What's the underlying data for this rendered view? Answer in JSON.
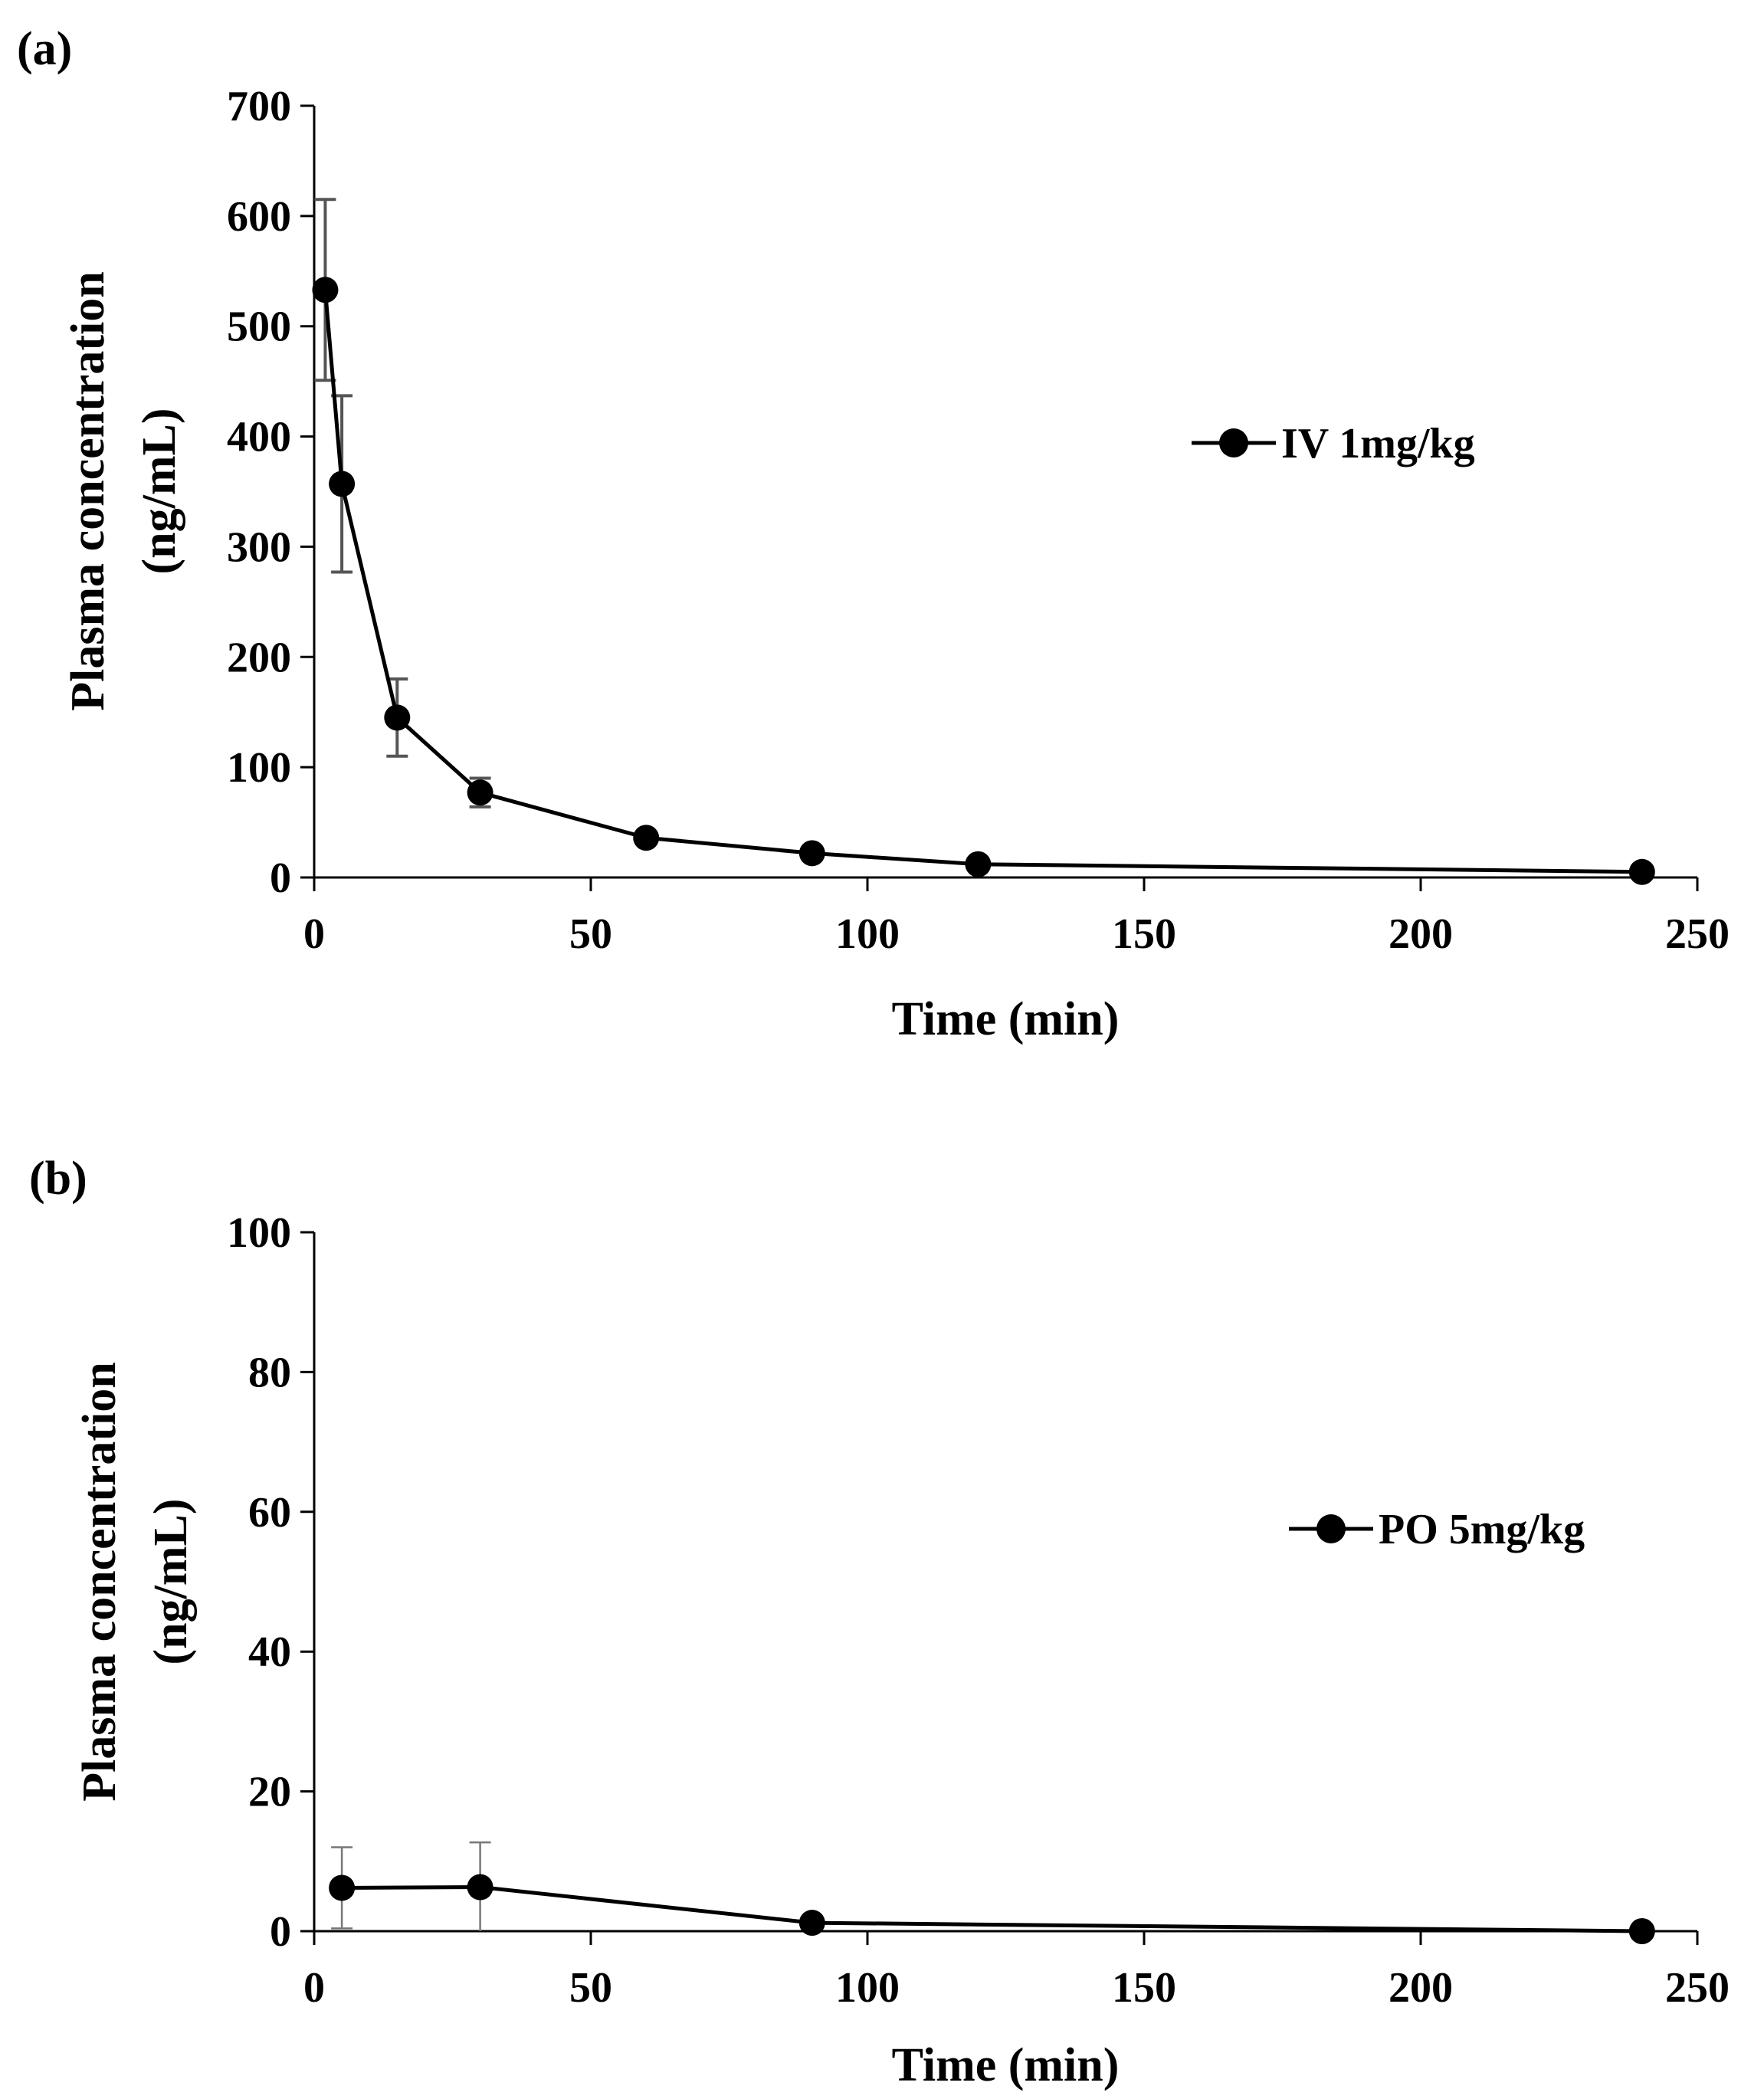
{
  "chart_data": [
    {
      "type": "line",
      "panel_label": "(a)",
      "title": "",
      "xlabel": "Time (min)",
      "ylabel_line1": "Plasma concentration",
      "ylabel_line2": "(ng/mL)",
      "xlim": [
        0,
        250
      ],
      "ylim": [
        0,
        700
      ],
      "xticks": [
        0,
        50,
        100,
        150,
        200,
        250
      ],
      "yticks": [
        0,
        100,
        200,
        300,
        400,
        500,
        600,
        700
      ],
      "grid": false,
      "legend_position": "right-middle",
      "series": [
        {
          "name": "IV 1mg/kg",
          "color": "#000000",
          "x": [
            2,
            5,
            15,
            30,
            60,
            90,
            120,
            240
          ],
          "y": [
            533,
            357,
            145,
            77,
            36,
            22,
            12,
            5
          ],
          "error": [
            82,
            80,
            35,
            13,
            0,
            0,
            0,
            0
          ]
        }
      ]
    },
    {
      "type": "line",
      "panel_label": "(b)",
      "title": "",
      "xlabel": "Time (min)",
      "ylabel_line1": "Plasma concentration",
      "ylabel_line2": "(ng/mL)",
      "xlim": [
        0,
        250
      ],
      "ylim": [
        0,
        100
      ],
      "xticks": [
        0,
        50,
        100,
        150,
        200,
        250
      ],
      "yticks": [
        0,
        20,
        40,
        60,
        80,
        100
      ],
      "grid": false,
      "legend_position": "right-middle",
      "series": [
        {
          "name": "PO 5mg/kg",
          "color": "#000000",
          "x": [
            5,
            30,
            90,
            240
          ],
          "y": [
            6.2,
            6.3,
            1.2,
            0
          ],
          "error": [
            5.8,
            6.4,
            0,
            0
          ]
        }
      ]
    }
  ]
}
